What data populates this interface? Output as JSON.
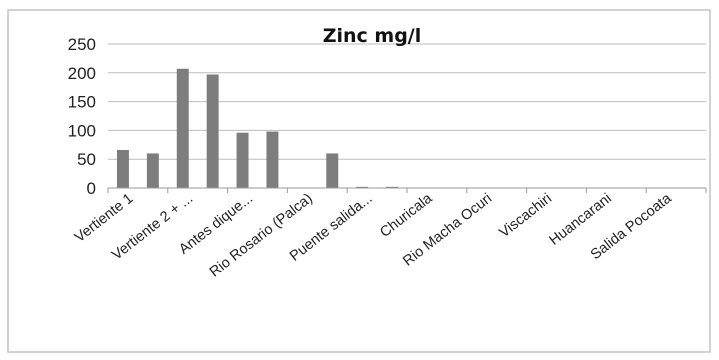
{
  "chart_data": {
    "type": "bar",
    "title": "Zinc mg/l",
    "xlabel": "",
    "ylabel": "",
    "ylim": [
      0,
      250
    ],
    "yticks": [
      0,
      50,
      100,
      150,
      200,
      250
    ],
    "grid": true,
    "legend": "none",
    "bar_color": "#7d7d7d",
    "categories": [
      "Vertiente 1",
      "",
      "Vertiente 2 + ...",
      "",
      "Antes dique...",
      "",
      "Rio Rosario (Palca)",
      "",
      "Puente salida...",
      "",
      "Churicala",
      "",
      "Rio Macha Ocuri",
      "",
      "Viscachiri",
      "",
      "Huancarani",
      "",
      "Salida Pocoata",
      ""
    ],
    "values": [
      66,
      60,
      207,
      197,
      96,
      98,
      0,
      60,
      2,
      2,
      0,
      0,
      0,
      0,
      0,
      0,
      0,
      0,
      0,
      0
    ]
  }
}
